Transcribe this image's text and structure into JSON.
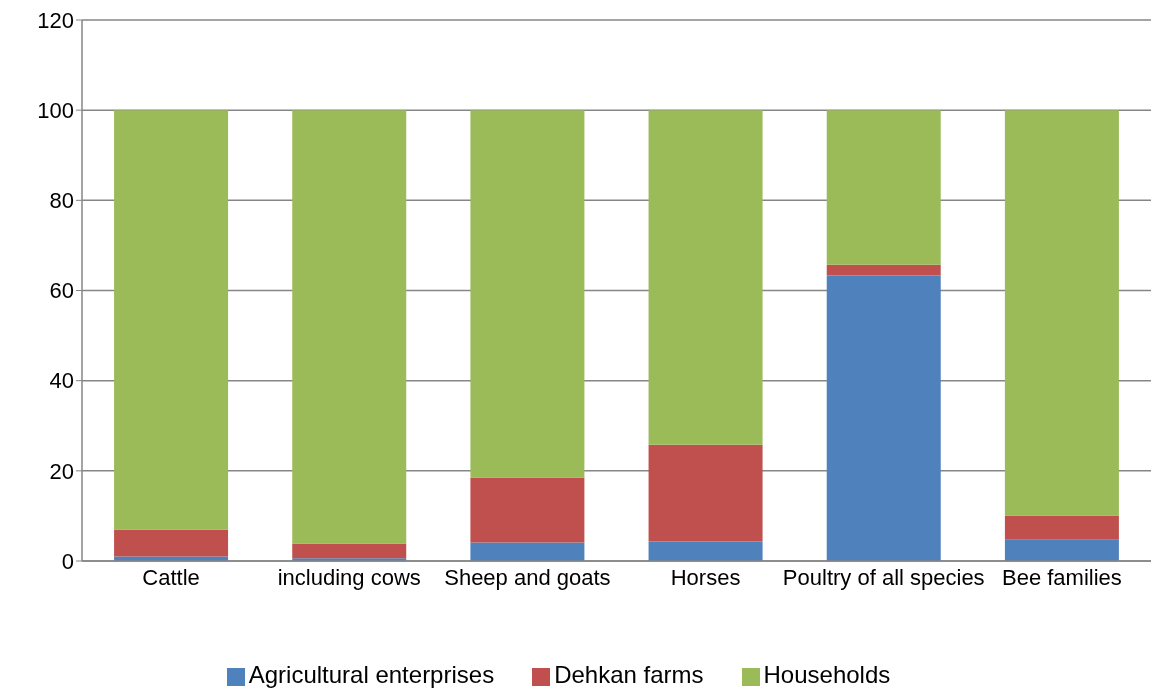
{
  "chart_data": {
    "type": "bar",
    "stacked": true,
    "categories": [
      "Cattle",
      "including cows",
      "Sheep and goats",
      "Horses",
      "Poultry of all species",
      "Bee families"
    ],
    "series": [
      {
        "name": "Agricultural enterprises",
        "color": "#4f81bd",
        "values": [
          1.0,
          0.6,
          4.1,
          4.3,
          63.3,
          4.7
        ]
      },
      {
        "name": "Dehkan farms",
        "color": "#c0504d",
        "values": [
          6.0,
          3.3,
          14.4,
          21.5,
          2.4,
          5.4
        ]
      },
      {
        "name": "Households",
        "color": "#9bbb59",
        "values": [
          93.0,
          96.1,
          81.5,
          74.2,
          34.3,
          89.9
        ]
      }
    ],
    "ylim": [
      0,
      120
    ],
    "yticks": [
      0,
      20,
      40,
      60,
      80,
      100,
      120
    ],
    "grid": "y",
    "legend": "bottom"
  }
}
